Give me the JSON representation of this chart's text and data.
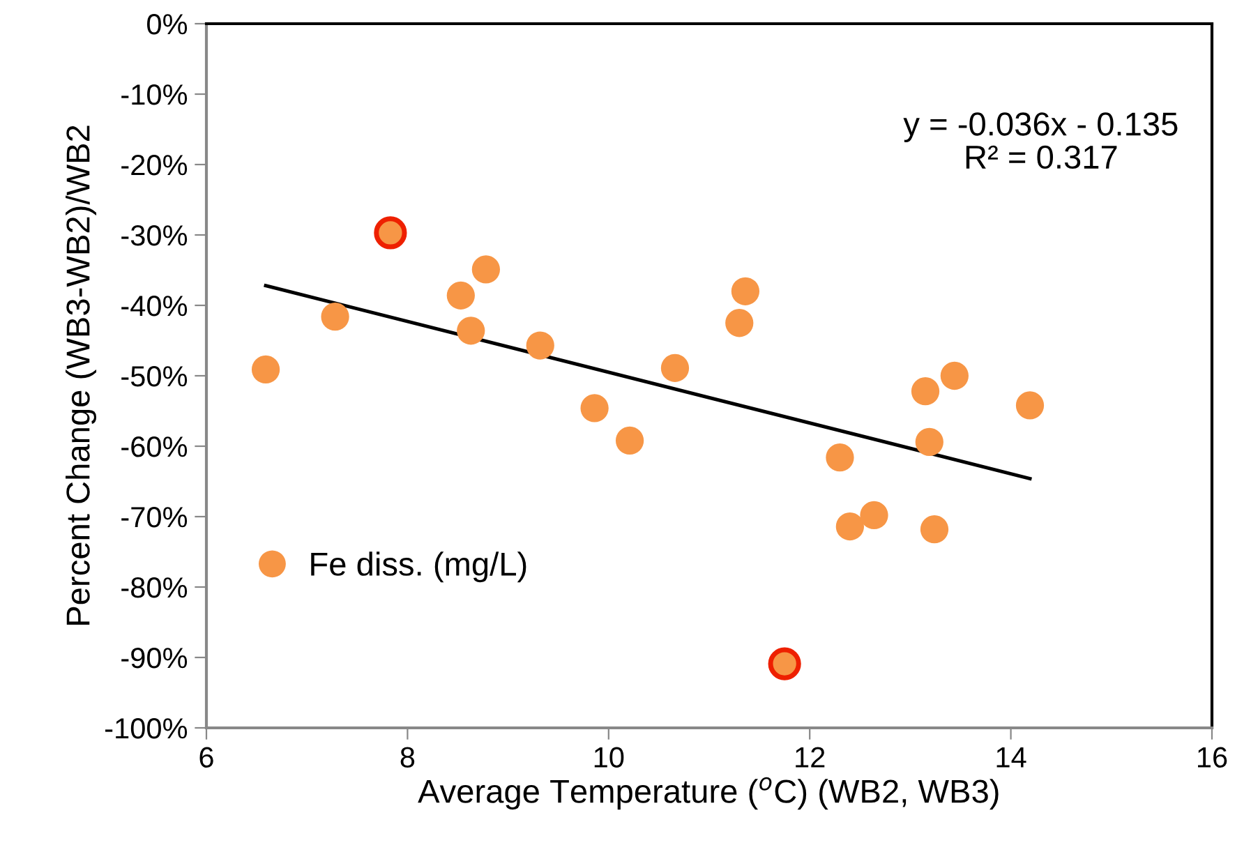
{
  "chart_data": {
    "type": "scatter",
    "xlabel": "Average Temperature ($^{o}$C) (WB2, WB3)",
    "ylabel": "Percent Change (WB3-WB2)/WB2",
    "annotations": [
      "y = -0.036x - 0.135\nR² = 0.317"
    ],
    "xlim": [
      6,
      16
    ],
    "xticks": [
      6,
      8,
      10,
      12,
      14,
      16
    ],
    "ylim": [
      -100,
      0
    ],
    "yticks": [
      {
        "value": -100,
        "label": "-100%"
      },
      {
        "value": -90,
        "label": "-90%"
      },
      {
        "value": -80,
        "label": "-80%"
      },
      {
        "value": -70,
        "label": "-70%"
      },
      {
        "value": -60,
        "label": "-60%"
      },
      {
        "value": -50,
        "label": "-50%"
      },
      {
        "value": -40,
        "label": "-40%"
      },
      {
        "value": -30,
        "label": "-30%"
      },
      {
        "value": -20,
        "label": "-20%"
      },
      {
        "value": -10,
        "label": "-10%"
      },
      {
        "value": 0,
        "label": "0%"
      }
    ],
    "grid": false,
    "legend": "bottom left",
    "marker": "circle",
    "series": [
      {
        "name": "Fe diss. (mg/L)",
        "color": "#f79646",
        "x": [
          6.59,
          7.28,
          8.53,
          8.63,
          8.78,
          9.32,
          9.86,
          10.21,
          10.66,
          11.36,
          11.3,
          12.3,
          12.4,
          12.64,
          13.15,
          13.44,
          13.19,
          13.24,
          14.19
        ],
        "values": [
          -49.1,
          -41.6,
          -38.6,
          -43.6,
          -34.9,
          -45.7,
          -54.6,
          -59.2,
          -48.9,
          -38.0,
          -42.5,
          -61.6,
          -71.4,
          -69.8,
          -52.2,
          -50.0,
          -59.4,
          -71.8,
          -54.2
        ]
      },
      {
        "color": "#ee2000",
        "x": [
          7.83,
          11.75
        ],
        "values": [
          -29.7,
          -90.9
        ]
      },
      {
        "type": "line",
        "color": "#000000",
        "line_style": "solid",
        "marker": "none",
        "x": [
          6.59,
          14.19
        ],
        "values": [
          -37.2,
          -64.6
        ]
      }
    ]
  }
}
